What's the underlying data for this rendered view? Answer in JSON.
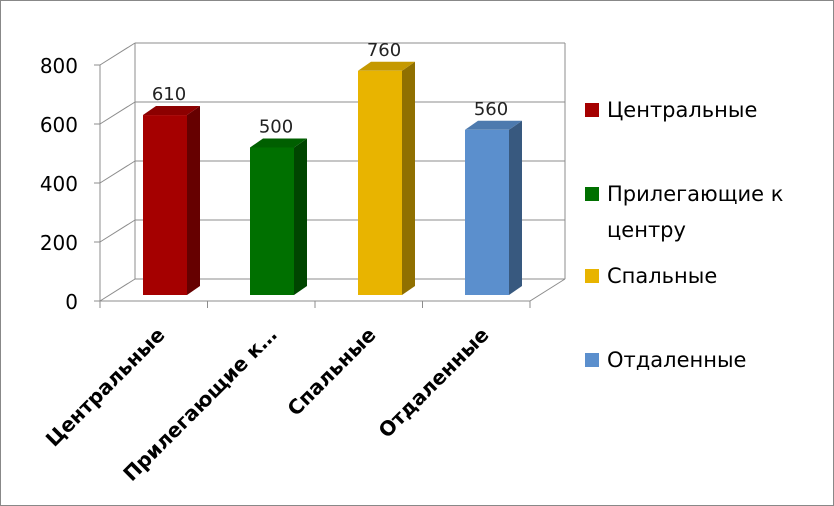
{
  "chart_data": {
    "type": "bar",
    "categories": [
      "Центральные",
      "Прилегающие к центру",
      "Спальные",
      "Отдаленные"
    ],
    "category_tick_labels": [
      "Центральные",
      "Прилегающие к…",
      "Спальные",
      "Отдаленные"
    ],
    "values": [
      610,
      500,
      760,
      560
    ],
    "data_labels": [
      "610",
      "500",
      "760",
      "560"
    ],
    "colors": [
      "#a50000",
      "#007000",
      "#e8b400",
      "#5b8fcd"
    ],
    "legend": [
      "Центральные",
      "Прилегающие к центру",
      "Спальные",
      "Отдаленные"
    ],
    "legend_position": "right",
    "ylim": [
      0,
      800
    ],
    "yticks": [
      "0",
      "200",
      "400",
      "600",
      "800"
    ],
    "grid": true,
    "style": "3d"
  }
}
